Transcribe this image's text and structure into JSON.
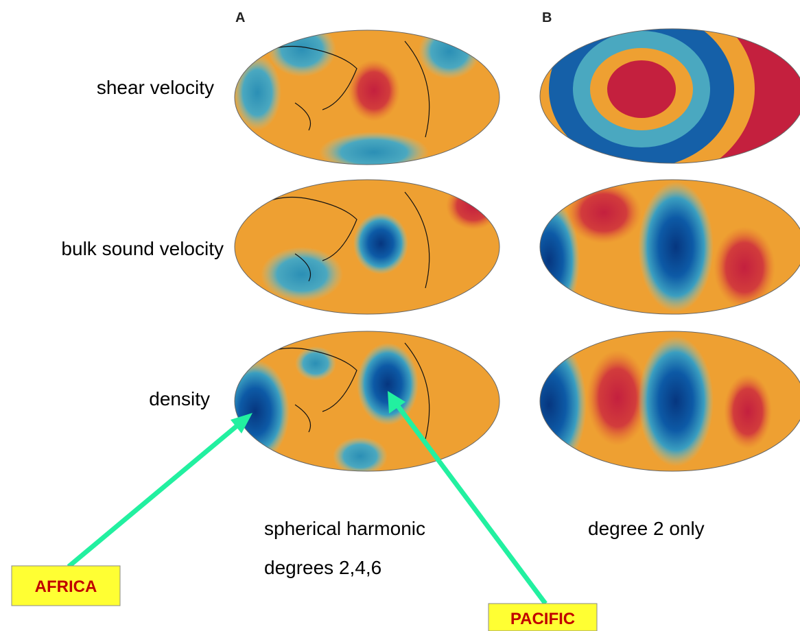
{
  "panels": {
    "a": "A",
    "b": "B"
  },
  "rows": [
    "shear velocity",
    "bulk sound velocity",
    "density"
  ],
  "captions": {
    "a": [
      "spherical harmonic",
      "degrees 2,4,6"
    ],
    "b": "degree 2 only"
  },
  "callouts": {
    "africa": "AFRICA",
    "pacific": "PACIFIC"
  }
}
